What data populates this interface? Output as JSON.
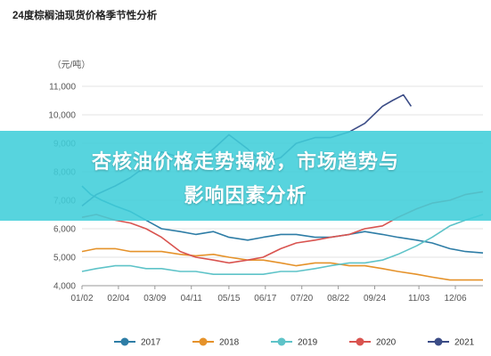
{
  "chart_data": {
    "type": "line",
    "title": "24度棕榈油现货价格季节性分析",
    "ylabel": "（元/吨）",
    "ylim": [
      4000,
      11000
    ],
    "yticks": [
      4000,
      5000,
      6000,
      7000,
      8000,
      9000,
      10000,
      11000
    ],
    "ytick_labels": [
      "4,000",
      "5,000",
      "6,000",
      "7,000",
      "8,000",
      "9,000",
      "10,000",
      "11,000"
    ],
    "xlim": [
      "01/02",
      "12/31"
    ],
    "xticks": [
      "01/02",
      "02/04",
      "03/09",
      "04/11",
      "05/15",
      "06/17",
      "07/20",
      "08/22",
      "09/24",
      "11/03",
      "12/06"
    ],
    "grid": true,
    "legend_position": "bottom",
    "series": [
      {
        "name": "2017",
        "color": "#2E7DA6",
        "points": [
          [
            "01/02",
            7500
          ],
          [
            "01/10",
            7200
          ],
          [
            "01/20",
            7000
          ],
          [
            "02/01",
            6800
          ],
          [
            "02/15",
            6600
          ],
          [
            "03/01",
            6300
          ],
          [
            "03/15",
            6000
          ],
          [
            "04/01",
            5900
          ],
          [
            "04/15",
            5800
          ],
          [
            "05/01",
            5900
          ],
          [
            "05/15",
            5700
          ],
          [
            "06/01",
            5600
          ],
          [
            "06/15",
            5700
          ],
          [
            "07/01",
            5800
          ],
          [
            "07/15",
            5800
          ],
          [
            "08/01",
            5700
          ],
          [
            "08/15",
            5700
          ],
          [
            "09/01",
            5800
          ],
          [
            "09/15",
            5900
          ],
          [
            "10/01",
            5800
          ],
          [
            "10/15",
            5700
          ],
          [
            "11/01",
            5600
          ],
          [
            "11/15",
            5500
          ],
          [
            "12/01",
            5300
          ],
          [
            "12/15",
            5200
          ],
          [
            "12/31",
            5150
          ]
        ]
      },
      {
        "name": "2018",
        "color": "#E5922A",
        "points": [
          [
            "01/02",
            5200
          ],
          [
            "01/15",
            5300
          ],
          [
            "02/01",
            5300
          ],
          [
            "02/15",
            5200
          ],
          [
            "03/01",
            5200
          ],
          [
            "03/15",
            5200
          ],
          [
            "04/01",
            5100
          ],
          [
            "04/15",
            5050
          ],
          [
            "05/01",
            5100
          ],
          [
            "05/15",
            5000
          ],
          [
            "06/01",
            4900
          ],
          [
            "06/15",
            4900
          ],
          [
            "07/01",
            4800
          ],
          [
            "07/15",
            4700
          ],
          [
            "08/01",
            4800
          ],
          [
            "08/15",
            4800
          ],
          [
            "09/01",
            4700
          ],
          [
            "09/15",
            4700
          ],
          [
            "10/01",
            4600
          ],
          [
            "10/15",
            4500
          ],
          [
            "11/01",
            4400
          ],
          [
            "11/15",
            4300
          ],
          [
            "12/01",
            4200
          ],
          [
            "12/15",
            4200
          ],
          [
            "12/31",
            4200
          ]
        ]
      },
      {
        "name": "2019",
        "color": "#5EC3C8",
        "points": [
          [
            "01/02",
            4500
          ],
          [
            "01/15",
            4600
          ],
          [
            "02/01",
            4700
          ],
          [
            "02/15",
            4700
          ],
          [
            "03/01",
            4600
          ],
          [
            "03/15",
            4600
          ],
          [
            "04/01",
            4500
          ],
          [
            "04/15",
            4500
          ],
          [
            "05/01",
            4400
          ],
          [
            "05/15",
            4400
          ],
          [
            "06/01",
            4400
          ],
          [
            "06/15",
            4400
          ],
          [
            "07/01",
            4500
          ],
          [
            "07/15",
            4500
          ],
          [
            "08/01",
            4600
          ],
          [
            "08/15",
            4700
          ],
          [
            "09/01",
            4800
          ],
          [
            "09/15",
            4800
          ],
          [
            "10/01",
            4900
          ],
          [
            "10/15",
            5100
          ],
          [
            "11/01",
            5400
          ],
          [
            "11/15",
            5700
          ],
          [
            "12/01",
            6100
          ],
          [
            "12/15",
            6300
          ],
          [
            "12/31",
            6500
          ]
        ]
      },
      {
        "name": "2020",
        "color": "#D9534F",
        "points": [
          [
            "01/02",
            6400
          ],
          [
            "01/15",
            6500
          ],
          [
            "02/01",
            6300
          ],
          [
            "02/15",
            6200
          ],
          [
            "03/01",
            6000
          ],
          [
            "03/15",
            5700
          ],
          [
            "04/01",
            5200
          ],
          [
            "04/15",
            5000
          ],
          [
            "05/01",
            4900
          ],
          [
            "05/15",
            4800
          ],
          [
            "06/01",
            4900
          ],
          [
            "06/15",
            5000
          ],
          [
            "07/01",
            5300
          ],
          [
            "07/15",
            5500
          ],
          [
            "08/01",
            5600
          ],
          [
            "08/15",
            5700
          ],
          [
            "09/01",
            5800
          ],
          [
            "09/15",
            6000
          ],
          [
            "10/01",
            6100
          ],
          [
            "10/15",
            6400
          ],
          [
            "11/01",
            6700
          ],
          [
            "11/15",
            6900
          ],
          [
            "12/01",
            7000
          ],
          [
            "12/15",
            7200
          ],
          [
            "12/31",
            7300
          ]
        ]
      },
      {
        "name": "2021",
        "color": "#3B4C86",
        "points": [
          [
            "01/02",
            6800
          ],
          [
            "01/15",
            7200
          ],
          [
            "02/01",
            7500
          ],
          [
            "02/15",
            7800
          ],
          [
            "03/01",
            8200
          ],
          [
            "03/15",
            8700
          ],
          [
            "04/01",
            8500
          ],
          [
            "04/15",
            8300
          ],
          [
            "05/01",
            8800
          ],
          [
            "05/15",
            9300
          ],
          [
            "06/01",
            8800
          ],
          [
            "06/15",
            8300
          ],
          [
            "07/01",
            8500
          ],
          [
            "07/15",
            9000
          ],
          [
            "08/01",
            9200
          ],
          [
            "08/15",
            9200
          ],
          [
            "09/01",
            9400
          ],
          [
            "09/15",
            9700
          ],
          [
            "10/01",
            10300
          ],
          [
            "10/10",
            10500
          ],
          [
            "10/20",
            10700
          ],
          [
            "10/27",
            10300
          ]
        ]
      }
    ]
  },
  "banner": {
    "line1": "杏核油价格走势揭秘，市场趋势与",
    "line2": "影响因素分析"
  }
}
